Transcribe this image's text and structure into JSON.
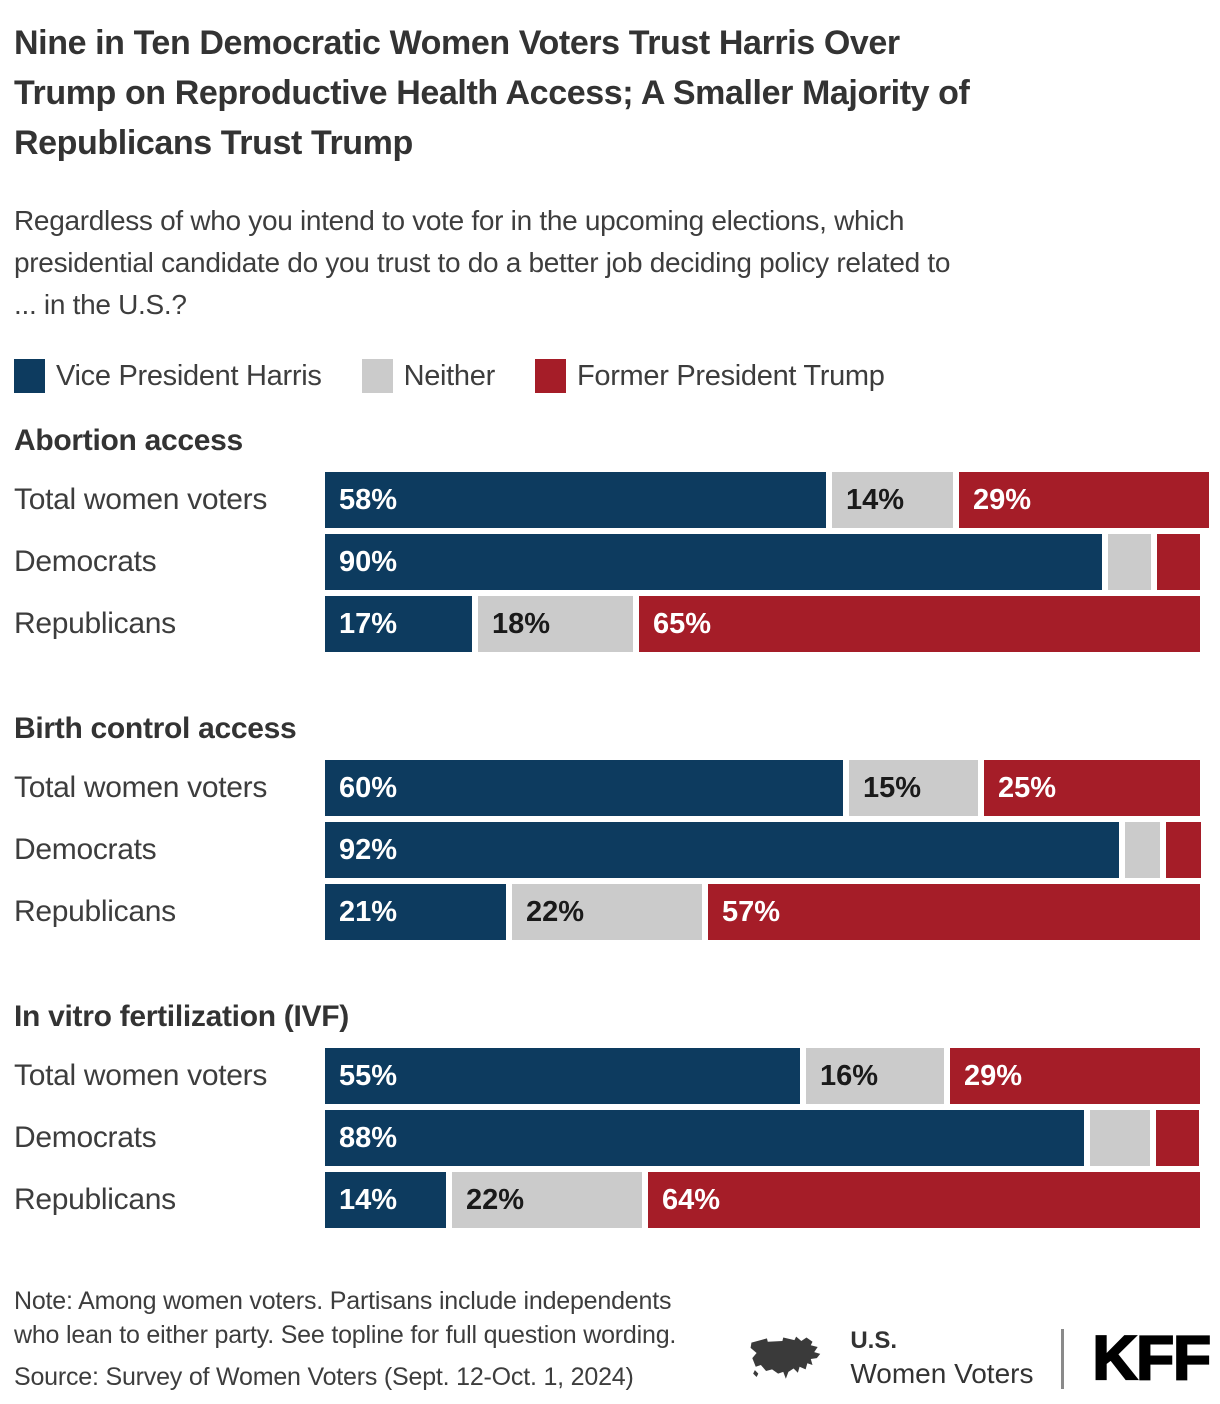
{
  "colors": {
    "harris": "#0D3B5F",
    "neither": "#CBCBCB",
    "trump": "#A51D28",
    "title_text": "#333333",
    "body_text": "#3D3D3D",
    "bar_label_light": "#FFFFFF",
    "bar_label_dark": "#1A1A1A"
  },
  "header": {
    "title": "Nine in Ten Democratic Women Voters Trust Harris Over Trump on Reproductive Health Access; A Smaller Majority of Republicans Trust Trump",
    "title_lines": [
      "Nine in Ten Democratic Women Voters Trust Harris Over",
      "Trump on Reproductive Health Access; A Smaller Majority of",
      "Republicans Trust Trump"
    ],
    "subtitle_lines": [
      "Regardless of who you intend to vote for in the upcoming elections, which",
      "presidential candidate do you trust to do a better job deciding policy related to",
      "... in the U.S.?"
    ]
  },
  "legend": {
    "items": [
      {
        "label": "Vice President Harris",
        "color_key": "harris"
      },
      {
        "label": "Neither",
        "color_key": "neither"
      },
      {
        "label": "Former President Trump",
        "color_key": "trump"
      }
    ]
  },
  "chart_data": {
    "type": "bar",
    "orientation": "horizontal",
    "stacked": true,
    "unit": "percent",
    "xlim": [
      0,
      100
    ],
    "series": [
      {
        "name": "Vice President Harris",
        "color_key": "harris",
        "label_color": "#FFFFFF"
      },
      {
        "name": "Neither",
        "color_key": "neither",
        "label_color": "#1A1A1A"
      },
      {
        "name": "Former President Trump",
        "color_key": "trump",
        "label_color": "#FFFFFF"
      }
    ],
    "groups": [
      {
        "heading": "Abortion access",
        "rows": [
          {
            "category": "Total women voters",
            "values": [
              58,
              14,
              29
            ],
            "value_labels": [
              "58%",
              "14%",
              "29%"
            ]
          },
          {
            "category": "Democrats",
            "values": [
              90,
              5,
              5
            ],
            "value_labels": [
              "90%",
              "",
              ""
            ]
          },
          {
            "category": "Republicans",
            "values": [
              17,
              18,
              65
            ],
            "value_labels": [
              "17%",
              "18%",
              "65%"
            ]
          }
        ]
      },
      {
        "heading": "Birth control access",
        "rows": [
          {
            "category": "Total women voters",
            "values": [
              60,
              15,
              25
            ],
            "value_labels": [
              "60%",
              "15%",
              "25%"
            ]
          },
          {
            "category": "Democrats",
            "values": [
              92,
              4,
              4
            ],
            "value_labels": [
              "92%",
              "",
              ""
            ]
          },
          {
            "category": "Republicans",
            "values": [
              21,
              22,
              57
            ],
            "value_labels": [
              "21%",
              "22%",
              "57%"
            ]
          }
        ]
      },
      {
        "heading": "In vitro fertilization (IVF)",
        "rows": [
          {
            "category": "Total women voters",
            "values": [
              55,
              16,
              29
            ],
            "value_labels": [
              "55%",
              "16%",
              "29%"
            ]
          },
          {
            "category": "Democrats",
            "values": [
              88,
              7,
              5
            ],
            "value_labels": [
              "88%",
              "",
              ""
            ]
          },
          {
            "category": "Republicans",
            "values": [
              14,
              22,
              64
            ],
            "value_labels": [
              "14%",
              "22%",
              "64%"
            ]
          }
        ]
      }
    ]
  },
  "footer": {
    "note_lines": [
      "Note: Among women voters. Partisans include independents",
      "who lean to either party. See topline for full question wording."
    ],
    "source": "Source: Survey of Women Voters (Sept. 12-Oct. 1, 2024)",
    "brand": {
      "line1": "U.S.",
      "line2": "Women Voters",
      "kff": "KFF"
    }
  }
}
